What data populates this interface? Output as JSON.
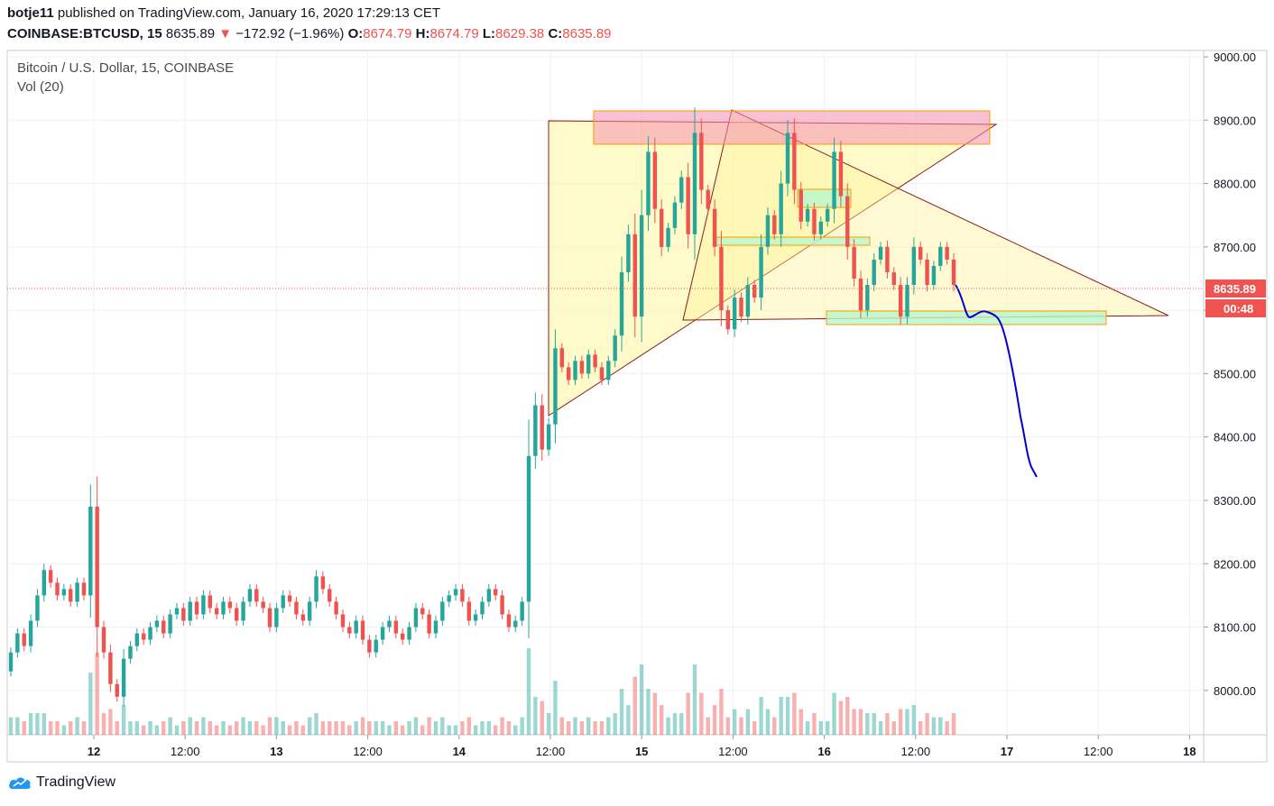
{
  "header": {
    "author": "botje11",
    "published_text": "published on TradingView.com, January 16, 2020 17:29:13 CET",
    "symbol": "COINBASE:BTCUSD, 15",
    "last": "8635.89",
    "change": "−172.92 (−1.96%)",
    "o_label": "O:",
    "o": "8674.79",
    "h_label": "H:",
    "h": "8674.79",
    "l_label": "L:",
    "l": "8629.38",
    "c_label": "C:",
    "c": "8635.89"
  },
  "legend": {
    "title": "Bitcoin / U.S. Dollar, 15, COINBASE",
    "volume": "Vol (20)"
  },
  "footer": {
    "brand": "TradingView"
  },
  "colors": {
    "up": "#26a69a",
    "down": "#ef5350",
    "grid": "#f0f3fa",
    "triangle_fill": "#fff59d",
    "triangle_line": "#8b1a1a",
    "resistance_zone": "#f48fb1",
    "support_zone": "#b9f6ca",
    "projection": "#0000cc",
    "price_line": "#ef5350"
  },
  "chart_data": {
    "type": "candlestick",
    "ylim": [
      7930,
      9010
    ],
    "y_ticks": [
      "9000.00",
      "8900.00",
      "8800.00",
      "8700.00",
      "8600.00",
      "8500.00",
      "8400.00",
      "8300.00",
      "8200.00",
      "8100.00",
      "8000.00"
    ],
    "x_ticks": [
      "12",
      "12:00",
      "13",
      "12:00",
      "14",
      "12:00",
      "15",
      "12:00",
      "16",
      "12:00",
      "17",
      "12:00",
      "18"
    ],
    "last_price_label": "8635.89",
    "countdown_label": "00:48",
    "candles": [
      [
        8030,
        8060
      ],
      [
        8060,
        8090
      ],
      [
        8090,
        8070
      ],
      [
        8070,
        8110
      ],
      [
        8110,
        8150
      ],
      [
        8150,
        8190
      ],
      [
        8190,
        8170
      ],
      [
        8170,
        8150
      ],
      [
        8150,
        8160
      ],
      [
        8160,
        8140
      ],
      [
        8140,
        8170
      ],
      [
        8170,
        8150
      ],
      [
        8150,
        8290
      ],
      [
        8290,
        8100
      ],
      [
        8100,
        8060
      ],
      [
        8060,
        8010
      ],
      [
        8010,
        7990
      ],
      [
        7990,
        8050
      ],
      [
        8050,
        8070
      ],
      [
        8070,
        8090
      ],
      [
        8090,
        8080
      ],
      [
        8080,
        8100
      ],
      [
        8100,
        8110
      ],
      [
        8110,
        8090
      ],
      [
        8090,
        8120
      ],
      [
        8120,
        8130
      ],
      [
        8130,
        8110
      ],
      [
        8110,
        8140
      ],
      [
        8140,
        8120
      ],
      [
        8120,
        8150
      ],
      [
        8150,
        8130
      ],
      [
        8130,
        8120
      ],
      [
        8120,
        8140
      ],
      [
        8140,
        8130
      ],
      [
        8130,
        8110
      ],
      [
        8110,
        8140
      ],
      [
        8140,
        8160
      ],
      [
        8160,
        8140
      ],
      [
        8140,
        8130
      ],
      [
        8130,
        8100
      ],
      [
        8100,
        8130
      ],
      [
        8130,
        8150
      ],
      [
        8150,
        8140
      ],
      [
        8140,
        8120
      ],
      [
        8120,
        8110
      ],
      [
        8110,
        8140
      ],
      [
        8140,
        8180
      ],
      [
        8180,
        8160
      ],
      [
        8160,
        8140
      ],
      [
        8140,
        8120
      ],
      [
        8120,
        8100
      ],
      [
        8100,
        8090
      ],
      [
        8090,
        8110
      ],
      [
        8110,
        8080
      ],
      [
        8080,
        8060
      ],
      [
        8060,
        8080
      ],
      [
        8080,
        8100
      ],
      [
        8100,
        8110
      ],
      [
        8110,
        8090
      ],
      [
        8090,
        8080
      ],
      [
        8080,
        8100
      ],
      [
        8100,
        8130
      ],
      [
        8130,
        8120
      ],
      [
        8120,
        8090
      ],
      [
        8090,
        8110
      ],
      [
        8110,
        8140
      ],
      [
        8140,
        8150
      ],
      [
        8150,
        8160
      ],
      [
        8160,
        8140
      ],
      [
        8140,
        8110
      ],
      [
        8110,
        8120
      ],
      [
        8120,
        8140
      ],
      [
        8140,
        8160
      ],
      [
        8160,
        8150
      ],
      [
        8150,
        8120
      ],
      [
        8120,
        8100
      ],
      [
        8100,
        8110
      ],
      [
        8110,
        8140
      ],
      [
        8140,
        8370
      ],
      [
        8370,
        8450
      ],
      [
        8450,
        8380
      ],
      [
        8380,
        8420
      ],
      [
        8420,
        8540
      ],
      [
        8540,
        8510
      ],
      [
        8510,
        8490
      ],
      [
        8490,
        8520
      ],
      [
        8520,
        8500
      ],
      [
        8500,
        8530
      ],
      [
        8530,
        8510
      ],
      [
        8510,
        8490
      ],
      [
        8490,
        8520
      ],
      [
        8520,
        8560
      ],
      [
        8560,
        8660
      ],
      [
        8660,
        8720
      ],
      [
        8720,
        8590
      ],
      [
        8590,
        8750
      ],
      [
        8750,
        8850
      ],
      [
        8850,
        8760
      ],
      [
        8760,
        8700
      ],
      [
        8700,
        8730
      ],
      [
        8730,
        8770
      ],
      [
        8770,
        8810
      ],
      [
        8810,
        8720
      ],
      [
        8720,
        8880
      ],
      [
        8880,
        8790
      ],
      [
        8790,
        8760
      ],
      [
        8760,
        8700
      ],
      [
        8700,
        8600
      ],
      [
        8600,
        8570
      ],
      [
        8570,
        8620
      ],
      [
        8620,
        8590
      ],
      [
        8590,
        8640
      ],
      [
        8640,
        8620
      ],
      [
        8620,
        8700
      ],
      [
        8700,
        8750
      ],
      [
        8750,
        8720
      ],
      [
        8720,
        8800
      ],
      [
        8800,
        8880
      ],
      [
        8880,
        8790
      ],
      [
        8790,
        8740
      ],
      [
        8740,
        8760
      ],
      [
        8760,
        8720
      ],
      [
        8720,
        8740
      ],
      [
        8740,
        8760
      ],
      [
        8760,
        8850
      ],
      [
        8850,
        8780
      ],
      [
        8780,
        8700
      ],
      [
        8700,
        8650
      ],
      [
        8650,
        8600
      ],
      [
        8600,
        8640
      ],
      [
        8640,
        8680
      ],
      [
        8680,
        8700
      ],
      [
        8700,
        8660
      ],
      [
        8660,
        8640
      ],
      [
        8640,
        8590
      ],
      [
        8590,
        8640
      ],
      [
        8640,
        8700
      ],
      [
        8700,
        8680
      ],
      [
        8680,
        8640
      ],
      [
        8640,
        8670
      ],
      [
        8670,
        8700
      ],
      [
        8700,
        8680
      ],
      [
        8680,
        8640
      ]
    ]
  }
}
